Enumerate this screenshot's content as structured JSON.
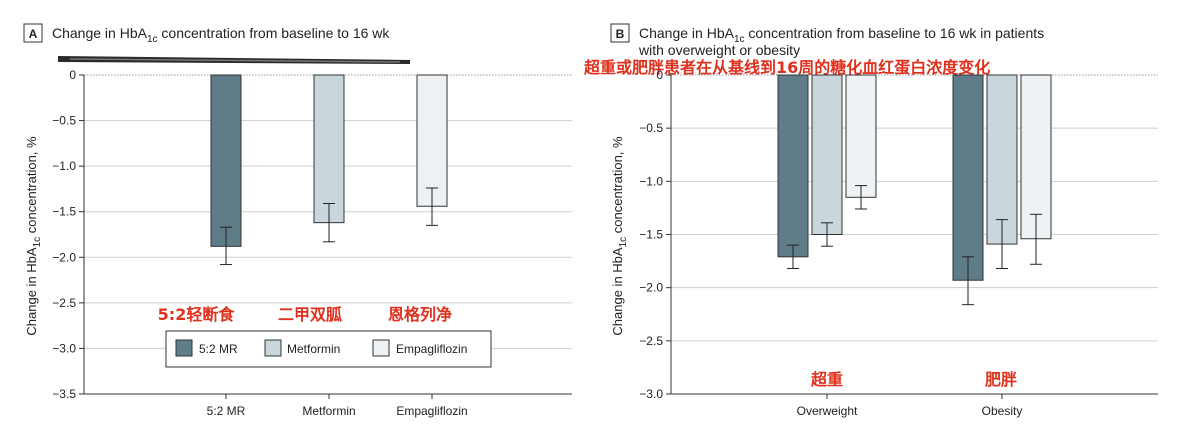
{
  "colors": {
    "bar_52mr": "#5f7d88",
    "bar_metformin": "#c9d6dc",
    "bar_empagliflozin": "#eef2f4",
    "annotation_red": "#e0301e",
    "grid": "#cfcfcf"
  },
  "chart_data": [
    {
      "type": "bar",
      "panel": "A",
      "title_prefix": "Change in HbA",
      "title_sub": "1c",
      "title_suffix": " concentration from baseline to 16 wk",
      "ylabel_prefix": "Change in HbA",
      "ylabel_sub": "1c",
      "ylabel_suffix": " concentration, %",
      "ylim": [
        -3.5,
        0
      ],
      "yticks": [
        0,
        -0.5,
        -1.0,
        -1.5,
        -2.0,
        -2.5,
        -3.0,
        -3.5
      ],
      "ytick_labels": [
        "0",
        "−0.5",
        "−1.0",
        "−1.5",
        "−2.0",
        "−2.5",
        "−3.0",
        "−3.5"
      ],
      "categories": [
        "5:2 MR",
        "Metformin",
        "Empagliflozin"
      ],
      "values": [
        -1.88,
        -1.62,
        -1.44
      ],
      "error_low": [
        -2.08,
        -1.83,
        -1.65
      ],
      "error_high": [
        -1.67,
        -1.41,
        -1.24
      ],
      "legend": [
        "5:2 MR",
        "Metformin",
        "Empagliflozin"
      ],
      "annotations": [
        "5:2轻断食",
        "二甲双胍",
        "恩格列净"
      ]
    },
    {
      "type": "bar",
      "panel": "B",
      "title_prefix": "Change in HbA",
      "title_sub": "1c",
      "title_suffix": " concentration from baseline to 16 wk in patients",
      "title_line2": "with overweight or obesity",
      "title_chinese": "超重或肥胖患者在从基线到16周的糖化血红蛋白浓度变化",
      "ylabel_prefix": "Change in HbA",
      "ylabel_sub": "1c",
      "ylabel_suffix": " concentration, %",
      "ylim": [
        -3.0,
        0
      ],
      "yticks": [
        0,
        -0.5,
        -1.0,
        -1.5,
        -2.0,
        -2.5,
        -3.0
      ],
      "ytick_labels": [
        "0",
        "−0.5",
        "−1.0",
        "−1.5",
        "−2.0",
        "−2.5",
        "−3.0"
      ],
      "categories": [
        "Overweight",
        "Obesity"
      ],
      "series": [
        {
          "name": "5:2 MR",
          "values": [
            -1.71,
            -1.93
          ],
          "error_low": [
            -1.82,
            -2.16
          ],
          "error_high": [
            -1.6,
            -1.71
          ]
        },
        {
          "name": "Metformin",
          "values": [
            -1.5,
            -1.59
          ],
          "error_low": [
            -1.61,
            -1.82
          ],
          "error_high": [
            -1.39,
            -1.36
          ]
        },
        {
          "name": "Empagliflozin",
          "values": [
            -1.15,
            -1.54
          ],
          "error_low": [
            -1.26,
            -1.78
          ],
          "error_high": [
            -1.04,
            -1.31
          ]
        }
      ],
      "annotations": [
        "超重",
        "肥胖"
      ]
    }
  ]
}
